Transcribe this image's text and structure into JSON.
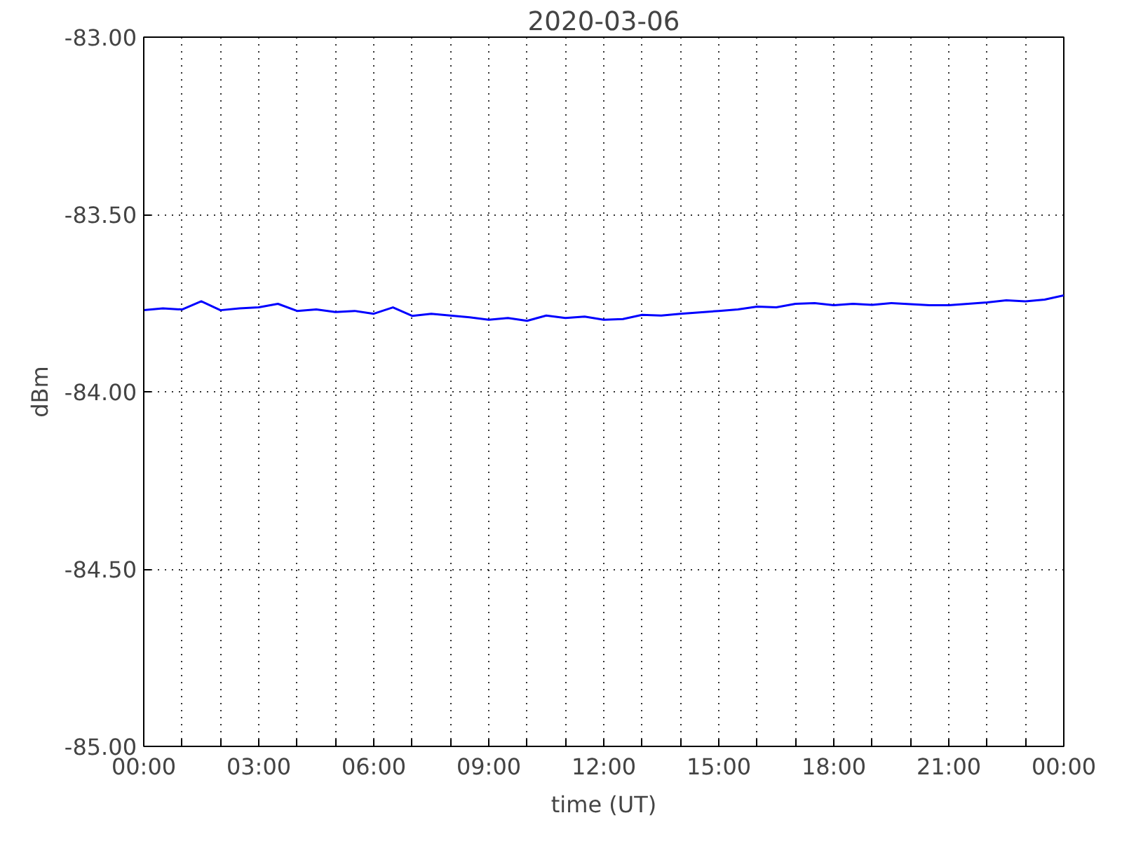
{
  "chart_data": {
    "type": "line",
    "title": "2020-03-06",
    "xlabel": "time (UT)",
    "ylabel": "dBm",
    "x": [
      0,
      0.5,
      1,
      1.5,
      2,
      2.5,
      3,
      3.5,
      4,
      4.5,
      5,
      5.5,
      6,
      6.5,
      7,
      7.5,
      8,
      8.5,
      9,
      9.5,
      10,
      10.5,
      11,
      11.5,
      12,
      12.5,
      13,
      13.5,
      14,
      14.5,
      15,
      15.5,
      16,
      16.5,
      17,
      17.5,
      18,
      18.5,
      19,
      19.5,
      20,
      20.5,
      21,
      21.5,
      22,
      22.5,
      23,
      23.5,
      24
    ],
    "series": [
      {
        "color": "#0000ff",
        "values": [
          -83.77,
          -83.765,
          -83.768,
          -83.745,
          -83.77,
          -83.765,
          -83.762,
          -83.752,
          -83.772,
          -83.768,
          -83.775,
          -83.772,
          -83.78,
          -83.762,
          -83.786,
          -83.78,
          -83.785,
          -83.79,
          -83.797,
          -83.792,
          -83.8,
          -83.785,
          -83.792,
          -83.788,
          -83.797,
          -83.795,
          -83.783,
          -83.785,
          -83.78,
          -83.776,
          -83.772,
          -83.768,
          -83.76,
          -83.762,
          -83.752,
          -83.75,
          -83.756,
          -83.752,
          -83.755,
          -83.75,
          -83.753,
          -83.756,
          -83.756,
          -83.752,
          -83.748,
          -83.742,
          -83.745,
          -83.74,
          -83.728
        ]
      }
    ],
    "xlim": [
      0,
      24
    ],
    "xticks": [
      "00:00",
      {
        "value": 1,
        "label": null
      },
      {
        "value": 2,
        "label": null
      },
      {
        "value": 3,
        "label": "03:00"
      },
      {
        "value": 4,
        "label": null
      },
      {
        "value": 5,
        "label": null
      },
      {
        "value": 6,
        "label": "06:00"
      },
      {
        "value": 7,
        "label": null
      },
      {
        "value": 8,
        "label": null
      },
      {
        "value": 9,
        "label": "09:00"
      },
      {
        "value": 10,
        "label": null
      },
      {
        "value": 11,
        "label": null
      },
      {
        "value": 12,
        "label": "12:00"
      },
      {
        "value": 13,
        "label": null
      },
      {
        "value": 14,
        "label": null
      },
      {
        "value": 15,
        "label": "15:00"
      },
      {
        "value": 16,
        "label": null
      },
      {
        "value": 17,
        "label": null
      },
      {
        "value": 18,
        "label": "18:00"
      },
      {
        "value": 19,
        "label": null
      },
      {
        "value": 20,
        "label": null
      },
      {
        "value": 21,
        "label": "21:00"
      },
      {
        "value": 22,
        "label": null
      },
      {
        "value": 23,
        "label": null
      },
      {
        "value": 24,
        "label": "00:00"
      }
    ],
    "ylim": [
      -85,
      -83
    ],
    "yticks": [
      {
        "value": -85,
        "label": "-85.00"
      },
      {
        "value": -84.5,
        "label": "-84.50"
      },
      {
        "value": -84,
        "label": "-84.00"
      },
      {
        "value": -83.5,
        "label": "-83.50"
      },
      {
        "value": -83,
        "label": "-83.00"
      }
    ],
    "grid": true,
    "line_style": "solid",
    "marker": "none"
  }
}
